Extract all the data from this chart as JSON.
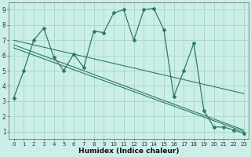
{
  "xlabel": "Humidex (Indice chaleur)",
  "bg_color": "#cceee8",
  "line_color": "#2d7a6a",
  "grid_color": "#aad8d0",
  "xlim": [
    -0.5,
    23.5
  ],
  "ylim": [
    0.5,
    9.5
  ],
  "xticks": [
    0,
    1,
    2,
    3,
    4,
    5,
    6,
    7,
    8,
    9,
    10,
    11,
    12,
    13,
    14,
    15,
    16,
    17,
    18,
    19,
    20,
    21,
    22,
    23
  ],
  "yticks": [
    1,
    2,
    3,
    4,
    5,
    6,
    7,
    8,
    9
  ],
  "main_series": {
    "x": [
      0,
      1,
      2,
      3,
      4,
      5,
      6,
      7,
      8,
      9,
      10,
      11,
      12,
      13,
      14,
      15,
      16,
      17,
      18,
      19,
      20,
      21,
      22,
      23
    ],
    "y": [
      3.2,
      5.0,
      7.0,
      7.8,
      5.9,
      5.0,
      6.1,
      5.2,
      7.6,
      7.5,
      8.8,
      9.0,
      7.0,
      9.0,
      9.1,
      7.7,
      3.3,
      5.0,
      6.8,
      2.4,
      1.3,
      1.3,
      1.1,
      0.9
    ]
  },
  "trend_lines": [
    {
      "x": [
        0,
        23
      ],
      "y": [
        7.0,
        3.5
      ]
    },
    {
      "x": [
        0,
        23
      ],
      "y": [
        6.7,
        1.1
      ]
    },
    {
      "x": [
        0,
        23
      ],
      "y": [
        6.5,
        1.0
      ]
    }
  ]
}
